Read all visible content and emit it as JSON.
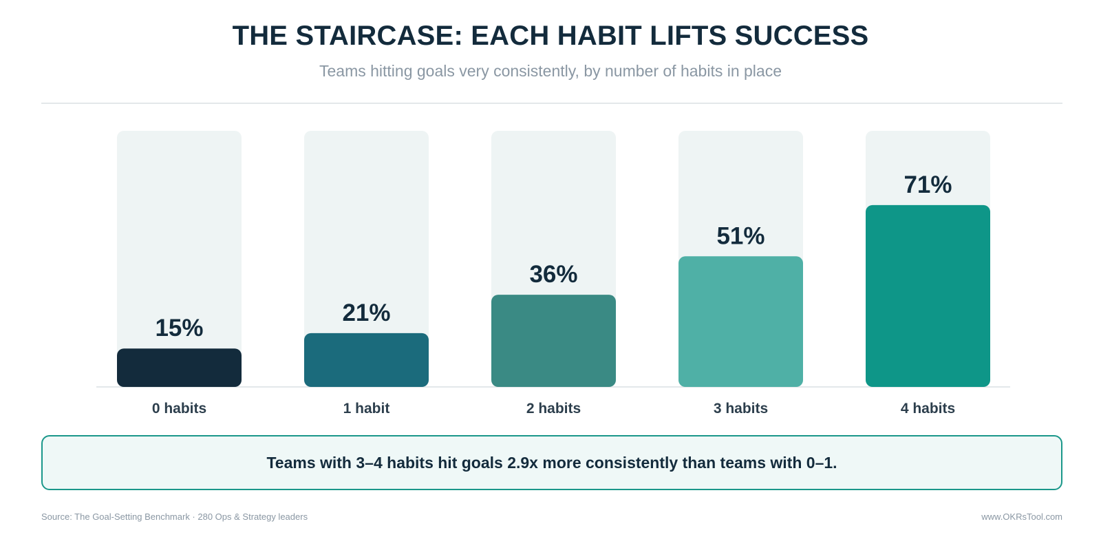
{
  "header": {
    "title": "THE STAIRCASE: EACH HABIT LIFTS SUCCESS",
    "subtitle": "Teams hitting goals very consistently, by number of habits in place"
  },
  "chart_data": {
    "type": "bar",
    "title": "THE STAIRCASE: EACH HABIT LIFTS SUCCESS",
    "subtitle": "Teams hitting goals very consistently, by number of habits in place",
    "categories": [
      "0 habits",
      "1 habit",
      "2 habits",
      "3 habits",
      "4 habits"
    ],
    "values": [
      15,
      21,
      36,
      51,
      71
    ],
    "value_labels": [
      "15%",
      "21%",
      "36%",
      "51%",
      "71%"
    ],
    "unit": "%",
    "ylim": [
      0,
      100
    ],
    "grid": false,
    "legend": "none",
    "bar_colors": [
      "#132b3c",
      "#1b6b7c",
      "#3a8a84",
      "#4fb0a6",
      "#0e9688"
    ],
    "track_color": "#eef4f4",
    "baseline_color": "#e3e8ea"
  },
  "callout": {
    "text": "Teams with 3–4 habits hit goals 2.9x more consistently than teams with 0–1."
  },
  "footer": {
    "source": "Source: The Goal-Setting Benchmark · 280 Ops & Strategy leaders",
    "site": "www.OKRsTool.com"
  }
}
